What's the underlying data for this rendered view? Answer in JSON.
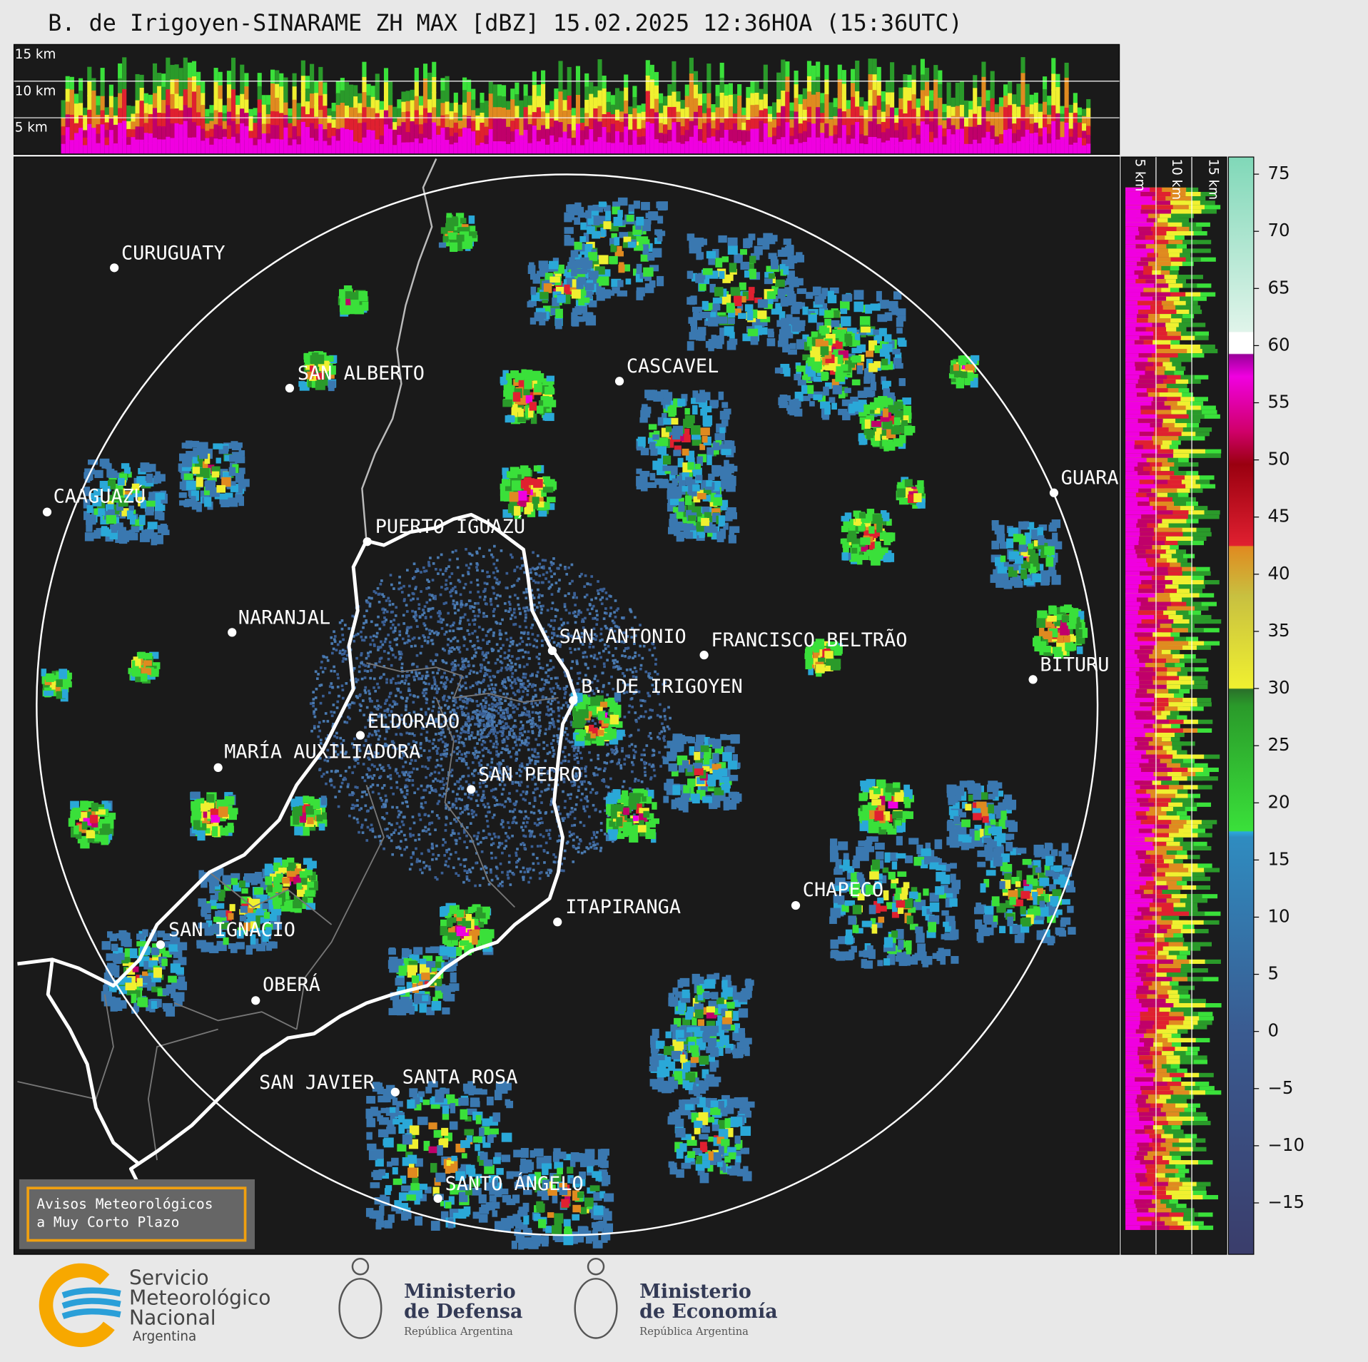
{
  "header": {
    "title": "B. de Irigoyen-SINARAME ZH MAX [dBZ] 15.02.2025 12:36HOA (15:36UTC)"
  },
  "top_panel": {
    "height_labels": [
      "15 km",
      "10 km",
      "5 km"
    ]
  },
  "side_panel": {
    "height_labels": [
      "5 km",
      "10 km",
      "15 km"
    ]
  },
  "map": {
    "cities": [
      "CURUGUATY",
      "SAN ALBERTO",
      "CASCAVEL",
      "GUARA",
      "CAAGUAZÚ",
      "PUERTO IGUAZÚ",
      "NARANJAL",
      "SAN ANTONIO",
      "FRANCISCO BELTRÃO",
      "BITURU",
      "B. DE IRIGOYEN",
      "ELDORADO",
      "MARÍA AUXILIADORA",
      "SAN PEDRO",
      "ITAPIRANGA",
      "CHAPECO",
      "SAN IGNACIO",
      "OBERÁ",
      "SAN JAVIER",
      "SANTA ROSA",
      "SANTO ÁNGELO"
    ]
  },
  "colorbar": {
    "range": [
      -19.5,
      76.5
    ],
    "ticks": [
      75,
      70,
      65,
      60,
      55,
      50,
      45,
      40,
      35,
      30,
      25,
      20,
      15,
      10,
      5,
      0,
      {
        "value": -5,
        "label": "−5"
      },
      {
        "value": -10,
        "label": "−10"
      },
      {
        "value": -15,
        "label": "−15"
      }
    ]
  },
  "notice": {
    "lines": [
      "Avisos Meteorológicos",
      "a Muy Corto Plazo"
    ]
  },
  "footer": {
    "smn": [
      "Servicio",
      "Meteorológico",
      "Nacional",
      "Argentina"
    ],
    "defensa": [
      "Ministerio",
      "de Defensa",
      "República Argentina"
    ],
    "economia": [
      "Ministerio",
      "de Economía",
      "República Argentina"
    ]
  }
}
